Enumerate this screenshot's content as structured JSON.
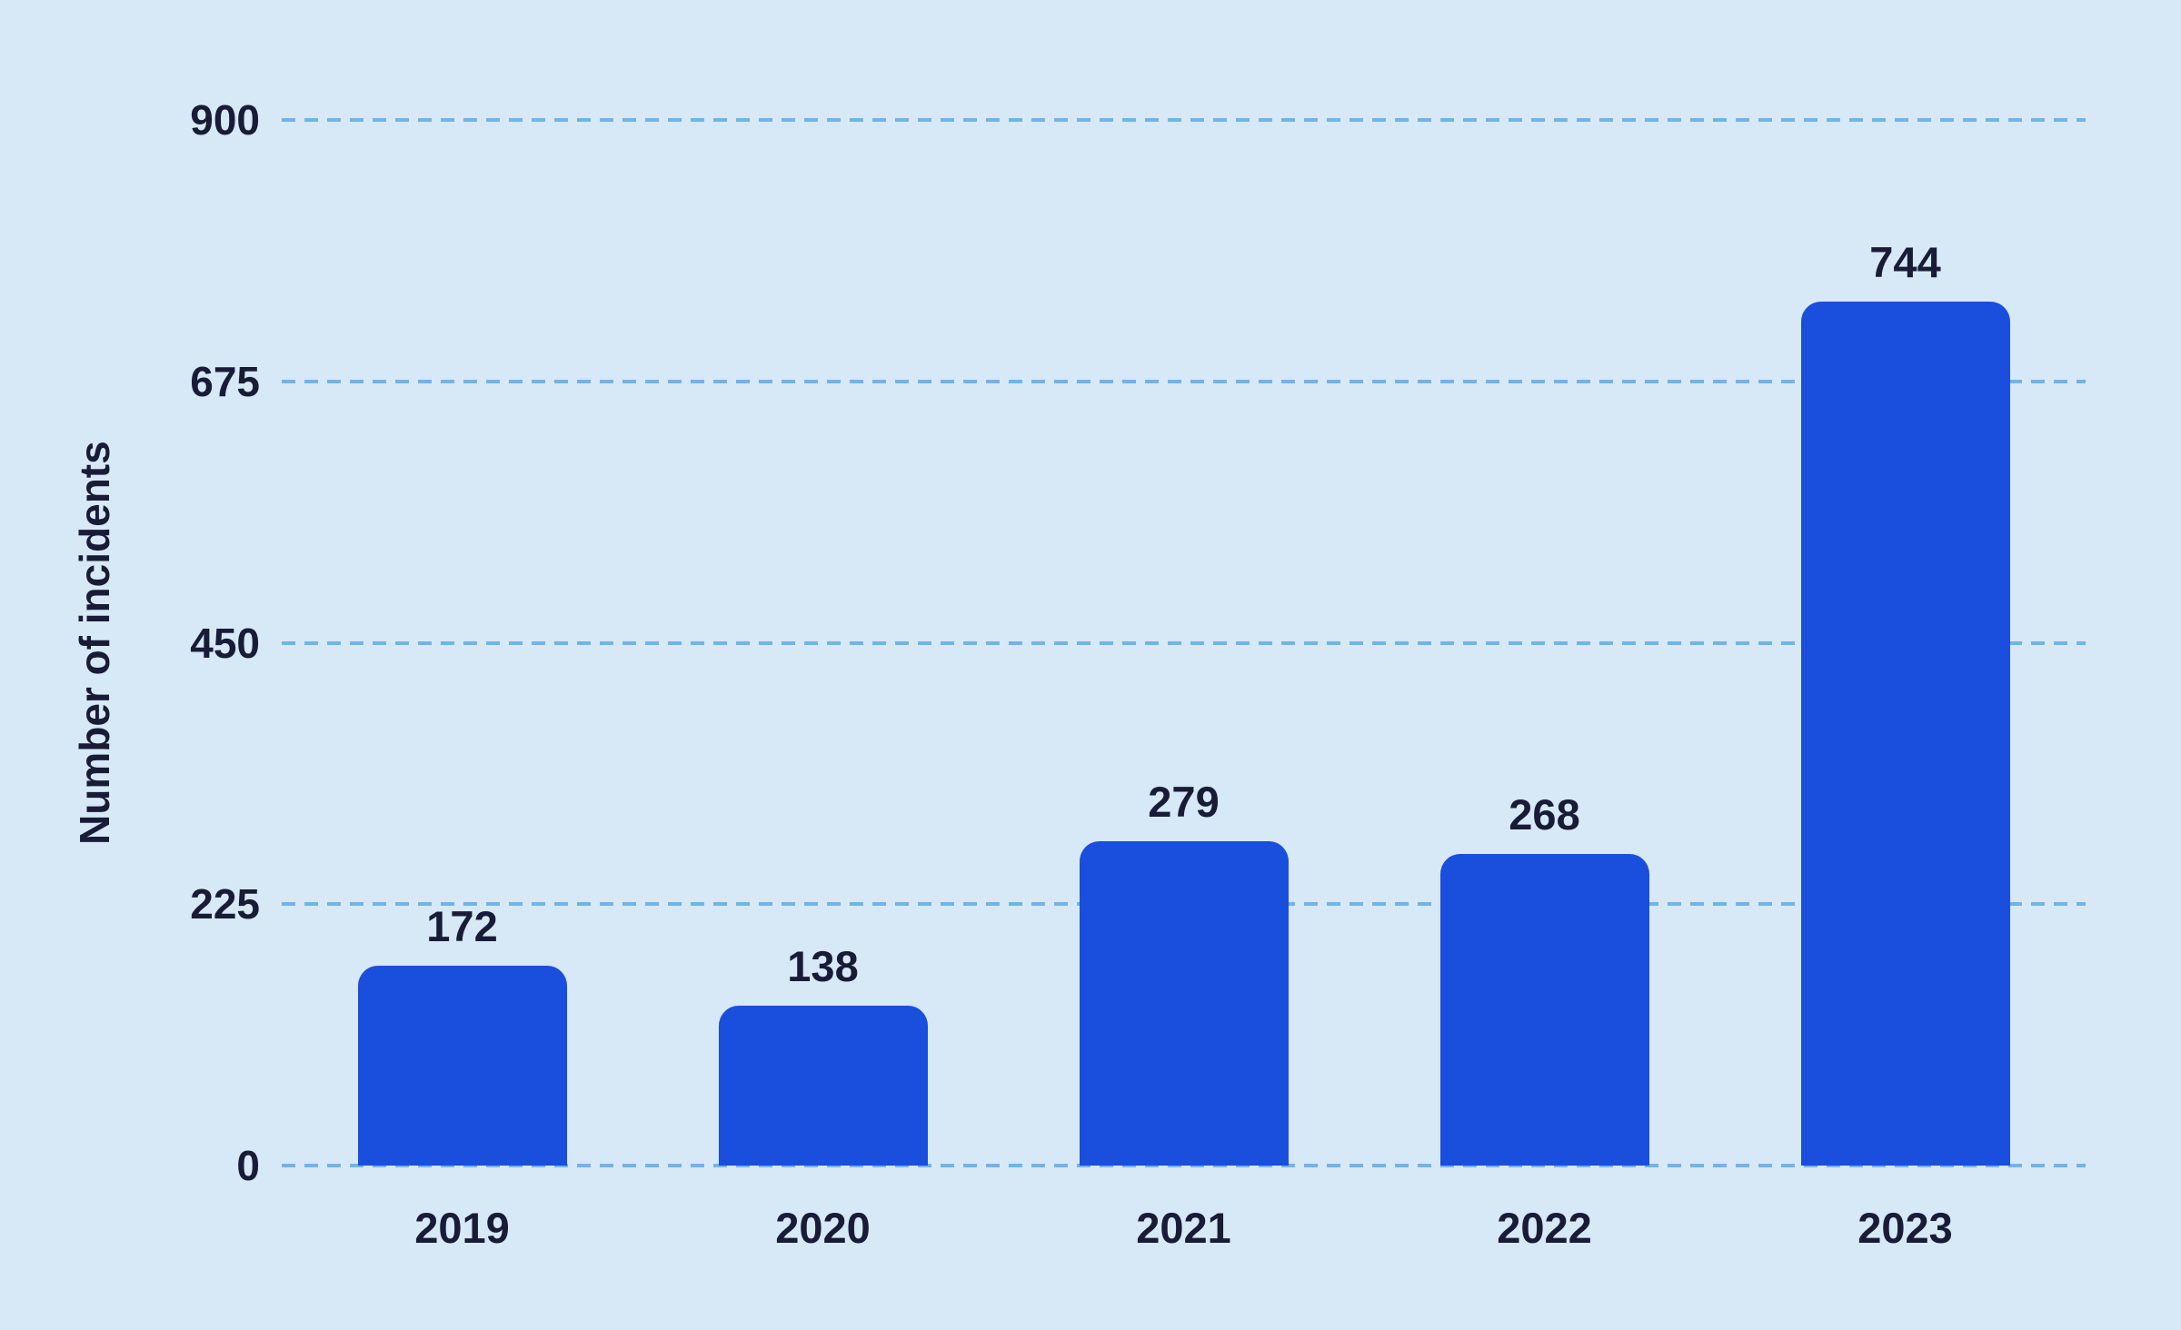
{
  "chart_data": {
    "type": "bar",
    "title": "",
    "categories": [
      "2019",
      "2020",
      "2021",
      "2022",
      "2023"
    ],
    "values": [
      172,
      138,
      279,
      268,
      744
    ],
    "xlabel": "",
    "ylabel": "Number of incidents",
    "ylim": [
      0,
      900
    ],
    "yticks": [
      0,
      225,
      450,
      675,
      900
    ],
    "grid": "horizontal-dashed",
    "legend": "none",
    "colors": {
      "background": "#d7e8f7",
      "bar": "#1a4edd",
      "gridline": "#70b4e8",
      "text": "#181c36"
    }
  }
}
